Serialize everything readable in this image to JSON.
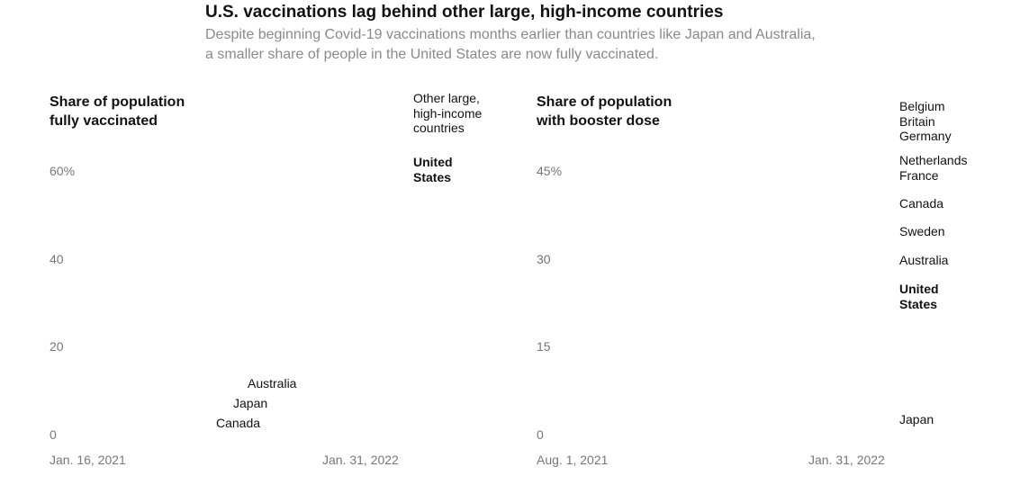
{
  "title": "U.S. vaccinations lag behind other large, high-income countries",
  "subtitle": "Despite beginning Covid-19 vaccinations months earlier than countries like Japan and Australia, a smaller share of people in the United States are now fully vaccinated.",
  "chart_data": [
    {
      "type": "line",
      "ylabel": "Share of population\nfully vaccinated",
      "yticks": [
        "60%",
        "40",
        "20",
        "0"
      ],
      "ylim": [
        0,
        60
      ],
      "xticks": [
        "Jan. 16, 2021",
        "Jan. 31, 2022"
      ],
      "labels": [
        {
          "text": "Other large,\nhigh-income\ncountries",
          "bold": false
        },
        {
          "text": "United\nStates",
          "bold": true
        },
        {
          "text": "Australia",
          "bold": false
        },
        {
          "text": "Japan",
          "bold": false
        },
        {
          "text": "Canada",
          "bold": false
        }
      ]
    },
    {
      "type": "line",
      "ylabel": "Share of population\nwith booster dose",
      "yticks": [
        "45%",
        "30",
        "15",
        "0"
      ],
      "ylim": [
        0,
        45
      ],
      "xticks": [
        "Aug. 1, 2021",
        "Jan. 31, 2022"
      ],
      "labels": [
        {
          "text": "Belgium\nBritain\nGermany",
          "bold": false
        },
        {
          "text": "Netherlands\nFrance",
          "bold": false
        },
        {
          "text": "Canada",
          "bold": false
        },
        {
          "text": "Sweden",
          "bold": false
        },
        {
          "text": "Australia",
          "bold": false
        },
        {
          "text": "United\nStates",
          "bold": true
        },
        {
          "text": "Japan",
          "bold": false
        }
      ]
    }
  ]
}
